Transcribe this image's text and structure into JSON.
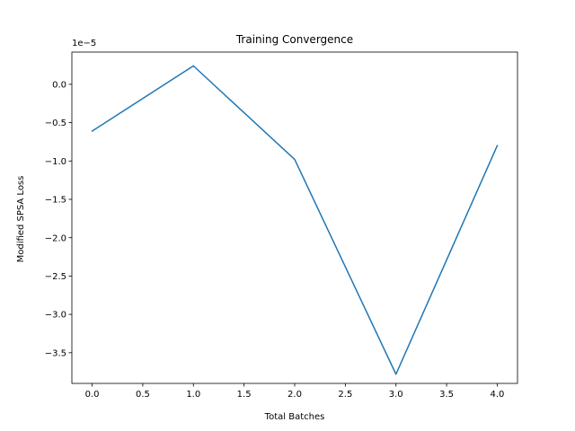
{
  "chart_data": {
    "type": "line",
    "title": "Training Convergence",
    "xlabel": "Total Batches",
    "ylabel": "Modified SPSA Loss",
    "y_offset_text": "1e−5",
    "xlim": [
      -0.2,
      4.2
    ],
    "ylim": [
      -3.9,
      0.42
    ],
    "x_ticks": [
      0.0,
      0.5,
      1.0,
      1.5,
      2.0,
      2.5,
      3.0,
      3.5,
      4.0
    ],
    "x_tick_labels": [
      "0.0",
      "0.5",
      "1.0",
      "1.5",
      "2.0",
      "2.5",
      "3.0",
      "3.5",
      "4.0"
    ],
    "y_ticks": [
      0.0,
      -0.5,
      -1.0,
      -1.5,
      -2.0,
      -2.5,
      -3.0,
      -3.5
    ],
    "y_tick_labels": [
      "0.0",
      "−0.5",
      "−1.0",
      "−1.5",
      "−2.0",
      "−2.5",
      "−3.0",
      "−3.5"
    ],
    "grid": false,
    "series": [
      {
        "color": "#1f77b4",
        "x": [
          0,
          1,
          2,
          3,
          4
        ],
        "y": [
          -0.61,
          0.24,
          -0.98,
          -3.78,
          -0.8
        ]
      }
    ]
  }
}
